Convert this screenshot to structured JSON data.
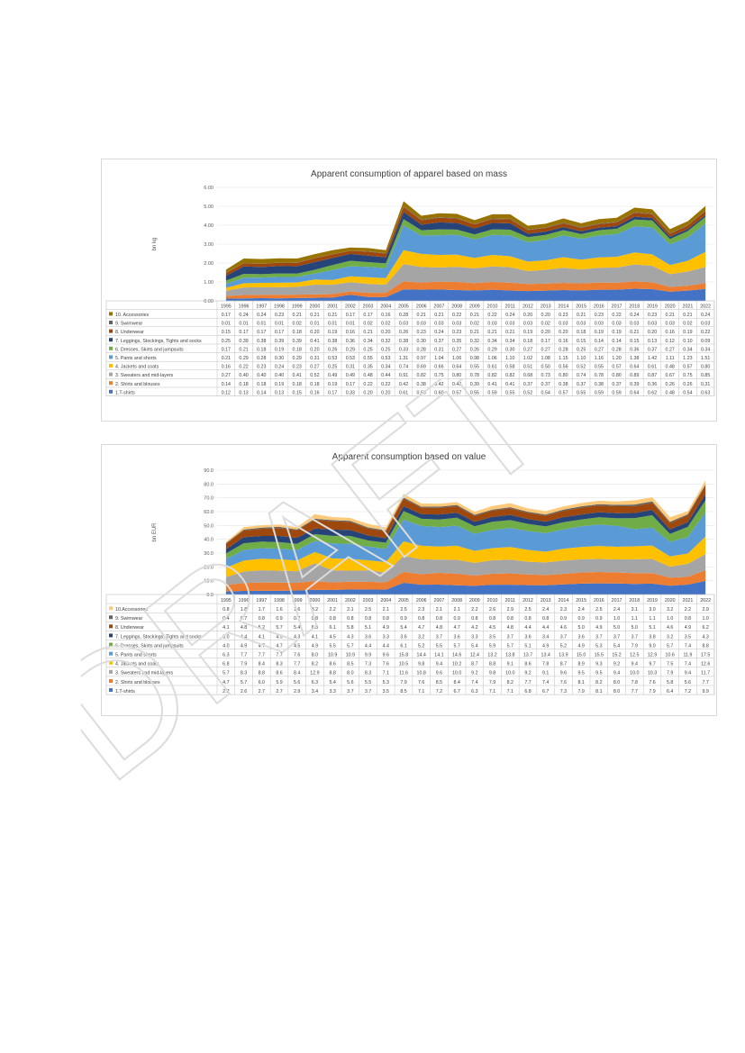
{
  "watermark": {
    "text": "DRAFT",
    "color": "#dcdcdc"
  },
  "chart_data": [
    {
      "type": "area",
      "stacked": true,
      "title": "Apparent consumption of apparel based on mass",
      "ylabel": "bn kg",
      "xlabel": "",
      "ylim": [
        0,
        6
      ],
      "yticks": [
        "0.00",
        "1.00",
        "2.00",
        "3.00",
        "4.00",
        "5.00",
        "6.00"
      ],
      "grid": true,
      "legend": "data-table",
      "decimals": 2,
      "categories": [
        "1995",
        "1996",
        "1997",
        "1998",
        "1999",
        "2000",
        "2001",
        "2002",
        "2003",
        "2004",
        "2005",
        "2006",
        "2007",
        "2008",
        "2009",
        "2010",
        "2011",
        "2012",
        "2013",
        "2014",
        "2015",
        "2016",
        "2017",
        "2018",
        "2019",
        "2020",
        "2021",
        "2022"
      ],
      "series": [
        {
          "name": "1.T-shirts",
          "color": "#4472c4",
          "values": [
            0.12,
            0.13,
            0.14,
            0.13,
            0.15,
            0.16,
            0.17,
            0.33,
            0.2,
            0.2,
            0.61,
            0.59,
            0.6,
            0.57,
            0.55,
            0.59,
            0.55,
            0.52,
            0.54,
            0.57,
            0.55,
            0.59,
            0.59,
            0.64,
            0.62,
            0.48,
            0.54,
            0.63
          ]
        },
        {
          "name": "2. Shirts and blouses",
          "color": "#ed7d31",
          "values": [
            0.14,
            0.18,
            0.18,
            0.19,
            0.18,
            0.18,
            0.19,
            0.17,
            0.22,
            0.22,
            0.42,
            0.38,
            0.42,
            0.43,
            0.39,
            0.41,
            0.41,
            0.37,
            0.37,
            0.38,
            0.37,
            0.38,
            0.37,
            0.39,
            0.36,
            0.26,
            0.26,
            0.31
          ]
        },
        {
          "name": "3. Sweaters and mid-layers",
          "color": "#a5a5a5",
          "values": [
            0.27,
            0.4,
            0.4,
            0.4,
            0.41,
            0.52,
            0.49,
            0.49,
            0.48,
            0.44,
            0.91,
            0.82,
            0.75,
            0.8,
            0.78,
            0.82,
            0.82,
            0.68,
            0.73,
            0.8,
            0.74,
            0.78,
            0.8,
            0.89,
            0.87,
            0.67,
            0.75,
            0.85
          ]
        },
        {
          "name": "4. Jackets and coats",
          "color": "#ffc000",
          "values": [
            0.16,
            0.22,
            0.23,
            0.24,
            0.23,
            0.27,
            0.25,
            0.31,
            0.35,
            0.34,
            0.74,
            0.69,
            0.66,
            0.64,
            0.55,
            0.61,
            0.58,
            0.51,
            0.5,
            0.56,
            0.52,
            0.55,
            0.57,
            0.64,
            0.61,
            0.48,
            0.57,
            0.8
          ]
        },
        {
          "name": "5. Pants and shorts",
          "color": "#5b9bd5",
          "values": [
            0.21,
            0.29,
            0.28,
            0.3,
            0.29,
            0.31,
            0.53,
            0.53,
            0.55,
            0.53,
            1.31,
            0.97,
            1.04,
            1.06,
            0.98,
            1.06,
            1.1,
            1.02,
            1.08,
            1.15,
            1.1,
            1.16,
            1.2,
            1.38,
            1.42,
            1.11,
            1.23,
            1.51
          ]
        },
        {
          "name": "6. Dresses, Skirts and jumpsuits",
          "color": "#70ad47",
          "values": [
            0.17,
            0.21,
            0.18,
            0.19,
            0.18,
            0.2,
            0.26,
            0.29,
            0.25,
            0.25,
            0.33,
            0.28,
            0.31,
            0.27,
            0.26,
            0.29,
            0.3,
            0.27,
            0.27,
            0.28,
            0.25,
            0.27,
            0.28,
            0.36,
            0.37,
            0.27,
            0.34,
            0.34
          ]
        },
        {
          "name": "7. Leggings, Stockings, Tights and socks",
          "color": "#264478",
          "values": [
            0.25,
            0.39,
            0.38,
            0.39,
            0.39,
            0.41,
            0.38,
            0.36,
            0.34,
            0.32,
            0.38,
            0.3,
            0.37,
            0.35,
            0.32,
            0.34,
            0.34,
            0.18,
            0.17,
            0.16,
            0.15,
            0.14,
            0.14,
            0.15,
            0.13,
            0.12,
            0.1,
            0.09
          ]
        },
        {
          "name": "8. Underwear",
          "color": "#9e480e",
          "values": [
            0.15,
            0.17,
            0.17,
            0.17,
            0.18,
            0.2,
            0.19,
            0.16,
            0.21,
            0.2,
            0.26,
            0.23,
            0.24,
            0.23,
            0.21,
            0.21,
            0.21,
            0.19,
            0.2,
            0.2,
            0.18,
            0.19,
            0.19,
            0.21,
            0.2,
            0.16,
            0.19,
            0.22
          ]
        },
        {
          "name": "9. Swimwear",
          "color": "#636363",
          "values": [
            0.01,
            0.01,
            0.01,
            0.01,
            0.02,
            0.01,
            0.01,
            0.01,
            0.02,
            0.02,
            0.03,
            0.03,
            0.03,
            0.03,
            0.02,
            0.03,
            0.03,
            0.03,
            0.02,
            0.03,
            0.03,
            0.03,
            0.03,
            0.03,
            0.03,
            0.03,
            0.02,
            0.03
          ]
        },
        {
          "name": "10. Accessories",
          "color": "#997300",
          "values": [
            0.17,
            0.24,
            0.24,
            0.23,
            0.21,
            0.21,
            0.21,
            0.17,
            0.17,
            0.16,
            0.28,
            0.21,
            0.21,
            0.22,
            0.21,
            0.22,
            0.24,
            0.2,
            0.2,
            0.23,
            0.21,
            0.23,
            0.22,
            0.24,
            0.23,
            0.21,
            0.21,
            0.24
          ]
        }
      ]
    },
    {
      "type": "area",
      "stacked": true,
      "title": "Apparent consumption based on value",
      "ylabel": "bn EUR",
      "xlabel": "",
      "ylim": [
        0,
        90
      ],
      "yticks": [
        "0.0",
        "10.0",
        "20.0",
        "30.0",
        "40.0",
        "50.0",
        "60.0",
        "70.0",
        "80.0",
        "90.0"
      ],
      "grid": true,
      "legend": "data-table",
      "decimals": 1,
      "categories": [
        "1995",
        "1996",
        "1997",
        "1998",
        "1999",
        "2000",
        "2001",
        "2002",
        "2003",
        "2004",
        "2005",
        "2006",
        "2007",
        "2008",
        "2009",
        "2010",
        "2011",
        "2012",
        "2013",
        "2014",
        "2015",
        "2016",
        "2017",
        "2018",
        "2019",
        "2020",
        "2021",
        "2022"
      ],
      "series": [
        {
          "name": "1.T-shirts",
          "color": "#4472c4",
          "values": [
            2.2,
            2.6,
            2.7,
            2.7,
            2.9,
            3.4,
            3.3,
            3.7,
            3.7,
            3.5,
            8.5,
            7.1,
            7.2,
            6.7,
            6.3,
            7.1,
            7.1,
            6.8,
            6.7,
            7.3,
            7.9,
            8.1,
            8.0,
            7.7,
            7.9,
            6.4,
            7.2,
            9.9
          ]
        },
        {
          "name": "2. Shirts and blouses",
          "color": "#ed7d31",
          "values": [
            4.7,
            5.7,
            6.0,
            5.9,
            5.6,
            6.3,
            5.4,
            5.6,
            5.5,
            5.3,
            7.9,
            7.6,
            8.5,
            8.4,
            7.4,
            7.9,
            8.2,
            7.7,
            7.4,
            7.6,
            8.1,
            8.2,
            8.0,
            7.8,
            7.6,
            5.8,
            5.6,
            7.7
          ]
        },
        {
          "name": "3. Sweaters and mid-layers",
          "color": "#a5a5a5",
          "values": [
            5.7,
            8.3,
            8.8,
            8.6,
            8.4,
            12.9,
            8.8,
            8.0,
            8.3,
            7.1,
            11.6,
            10.8,
            9.6,
            10.0,
            9.2,
            9.8,
            10.0,
            9.2,
            9.1,
            9.6,
            9.5,
            9.5,
            9.4,
            10.0,
            10.3,
            7.9,
            9.4,
            11.7
          ]
        },
        {
          "name": "4. Jackets and coats",
          "color": "#ffc000",
          "values": [
            6.8,
            7.9,
            8.4,
            8.3,
            7.7,
            8.2,
            8.6,
            8.5,
            7.3,
            7.6,
            10.5,
            9.8,
            9.4,
            10.2,
            8.7,
            8.8,
            9.1,
            8.6,
            7.8,
            8.7,
            8.9,
            9.3,
            9.2,
            9.4,
            9.7,
            7.5,
            7.4,
            12.6
          ]
        },
        {
          "name": "5. Pants and shorts",
          "color": "#5b9bd5",
          "values": [
            6.3,
            7.7,
            7.7,
            7.7,
            7.6,
            8.0,
            10.9,
            10.9,
            9.9,
            9.6,
            15.8,
            14.4,
            14.1,
            14.6,
            12.4,
            13.2,
            13.8,
            13.7,
            13.4,
            13.9,
            15.0,
            15.5,
            15.2,
            12.5,
            12.9,
            10.6,
            11.9,
            17.5
          ]
        },
        {
          "name": "6. Dresses, Skirts and jumpsuits",
          "color": "#70ad47",
          "values": [
            4.0,
            4.9,
            4.7,
            4.7,
            4.5,
            4.9,
            5.5,
            5.7,
            4.4,
            4.4,
            6.1,
            5.2,
            5.5,
            5.7,
            5.4,
            5.9,
            5.7,
            5.1,
            4.9,
            5.2,
            4.9,
            5.3,
            5.4,
            7.9,
            9.0,
            5.7,
            7.4,
            8.8
          ]
        },
        {
          "name": "7. Leggings, Stockings, Tights and socks",
          "color": "#264478",
          "values": [
            3.0,
            4.4,
            4.1,
            4.5,
            4.3,
            4.1,
            4.5,
            4.3,
            3.6,
            3.3,
            3.6,
            3.2,
            3.7,
            3.6,
            3.3,
            3.5,
            3.7,
            3.6,
            3.4,
            3.7,
            3.6,
            3.7,
            3.7,
            3.7,
            3.8,
            3.2,
            3.5,
            4.3
          ]
        },
        {
          "name": "8. Underwear",
          "color": "#9e480e",
          "values": [
            4.1,
            4.8,
            5.2,
            5.7,
            5.4,
            6.3,
            6.1,
            5.8,
            5.1,
            4.9,
            5.4,
            4.7,
            4.8,
            4.7,
            4.2,
            4.5,
            4.8,
            4.4,
            4.4,
            4.6,
            5.0,
            4.9,
            5.0,
            5.0,
            5.1,
            4.6,
            4.9,
            6.2
          ]
        },
        {
          "name": "9. Swimwear",
          "color": "#636363",
          "values": [
            0.4,
            0.7,
            0.8,
            0.9,
            0.7,
            0.8,
            0.8,
            0.8,
            0.8,
            0.8,
            0.9,
            0.8,
            0.8,
            0.9,
            0.8,
            0.8,
            0.8,
            0.8,
            0.8,
            0.9,
            0.9,
            0.9,
            1.0,
            1.1,
            1.1,
            1.0,
            0.8,
            1.0
          ]
        },
        {
          "name": "10.Accessories",
          "color": "#ffc97a",
          "values": [
            0.8,
            1.8,
            1.7,
            1.6,
            1.6,
            3.2,
            2.2,
            2.1,
            2.5,
            2.1,
            2.5,
            2.3,
            2.1,
            2.1,
            2.2,
            2.6,
            2.9,
            2.5,
            2.4,
            2.3,
            2.4,
            2.5,
            2.4,
            3.1,
            3.0,
            3.2,
            2.2,
            2.9
          ]
        }
      ]
    }
  ]
}
